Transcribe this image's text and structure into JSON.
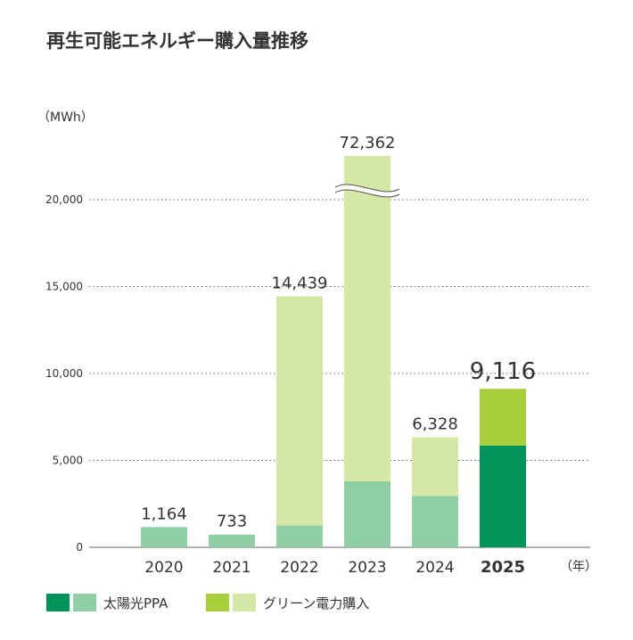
{
  "chart_data": {
    "type": "bar",
    "stacked": true,
    "title": "再生可能エネルギー購入量推移",
    "ylabel": "（MWh）",
    "xlabel_unit": "（年）",
    "ylim": [
      0,
      25000
    ],
    "yticks": [
      0,
      5000,
      10000,
      15000,
      20000
    ],
    "ytick_labels": [
      "0",
      "5,000",
      "10,000",
      "15,000",
      "20,000"
    ],
    "axis_break": {
      "category": "2023",
      "note": "bar broken, true total 72,362"
    },
    "categories": [
      "2020",
      "2021",
      "2022",
      "2023",
      "2024",
      "2025"
    ],
    "highlight_category": "2025",
    "series": [
      {
        "name": "太陽光PPA",
        "values": [
          1164,
          733,
          1250,
          3800,
          2950,
          5850
        ],
        "colors": [
          "#8fcfa6",
          "#8fcfa6",
          "#8fcfa6",
          "#8fcfa6",
          "#8fcfa6",
          "#00935a"
        ]
      },
      {
        "name": "グリーン電力購入",
        "values": [
          0,
          0,
          13189,
          68562,
          3378,
          3266
        ],
        "colors": [
          "#d6e8a5",
          "#d6e8a5",
          "#d6e8a5",
          "#d6e8a5",
          "#d6e8a5",
          "#a8cf3b"
        ]
      }
    ],
    "totals": [
      1164,
      733,
      14439,
      72362,
      6328,
      9116
    ],
    "total_labels": [
      "1,164",
      "733",
      "14,439",
      "72,362",
      "6,328",
      "9,116"
    ],
    "legend": [
      {
        "label": "太陽光PPA",
        "swatches": [
          "#00935a",
          "#8fcfa6"
        ]
      },
      {
        "label": "グリーン電力購入",
        "swatches": [
          "#a8cf3b",
          "#d6e8a5"
        ]
      }
    ]
  }
}
